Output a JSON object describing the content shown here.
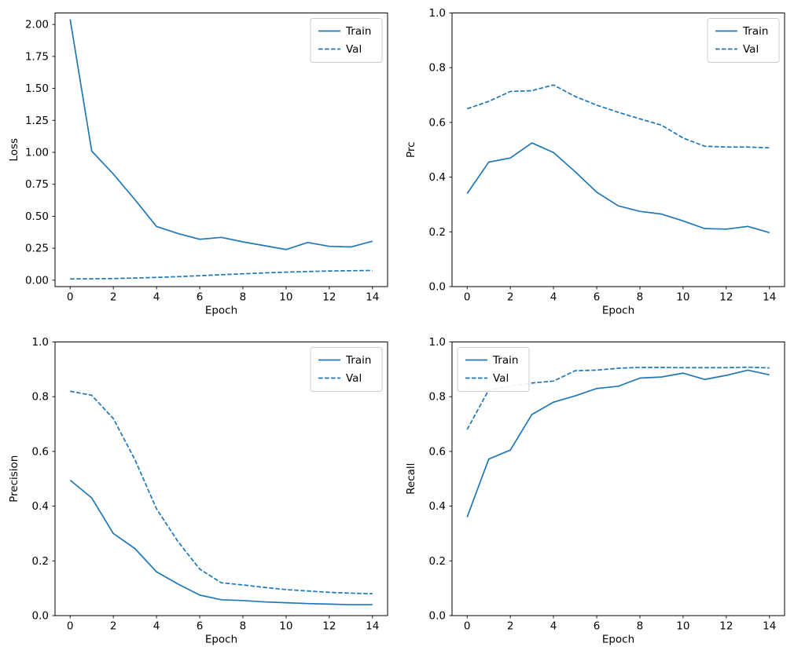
{
  "figure": {
    "background": "#ffffff",
    "line_color": "#1f77b4",
    "spine_color": "#000000",
    "legend_entries": [
      {
        "label": "Train",
        "style": "solid"
      },
      {
        "label": "Val",
        "style": "dashed"
      }
    ]
  },
  "chart_data": [
    {
      "type": "line",
      "name": "loss",
      "title": "",
      "xlabel": "Epoch",
      "ylabel": "Loss",
      "grid": false,
      "legend_position": "upper-right",
      "xlim": [
        -0.7,
        14.7
      ],
      "ylim": [
        -0.05,
        2.09
      ],
      "x": [
        0,
        1,
        2,
        3,
        4,
        5,
        6,
        7,
        8,
        9,
        10,
        11,
        12,
        13,
        14
      ],
      "xticks": [
        0,
        2,
        4,
        6,
        8,
        10,
        12,
        14
      ],
      "xticklabels": [
        "0",
        "2",
        "4",
        "6",
        "8",
        "10",
        "12",
        "14"
      ],
      "yticks": [
        0,
        0.25,
        0.5,
        0.75,
        1.0,
        1.25,
        1.5,
        1.75,
        2.0
      ],
      "yticklabels": [
        "0.00",
        "0.25",
        "0.50",
        "0.75",
        "1.00",
        "1.25",
        "1.50",
        "1.75",
        "2.00"
      ],
      "series": [
        {
          "name": "Train",
          "style": "solid",
          "color": "#1f77b4",
          "values": [
            2.04,
            1.01,
            0.83,
            0.63,
            0.42,
            0.365,
            0.32,
            0.335,
            0.3,
            0.27,
            0.24,
            0.295,
            0.265,
            0.26,
            0.305
          ]
        },
        {
          "name": "Val",
          "style": "dashed",
          "color": "#1f77b4",
          "values": [
            0.01,
            0.011,
            0.013,
            0.017,
            0.022,
            0.028,
            0.035,
            0.043,
            0.05,
            0.057,
            0.063,
            0.068,
            0.072,
            0.074,
            0.076
          ]
        }
      ]
    },
    {
      "type": "line",
      "name": "prc",
      "title": "",
      "xlabel": "Epoch",
      "ylabel": "Prc",
      "grid": false,
      "legend_position": "upper-right",
      "xlim": [
        -0.7,
        14.7
      ],
      "ylim": [
        0,
        1
      ],
      "x": [
        0,
        1,
        2,
        3,
        4,
        5,
        6,
        7,
        8,
        9,
        10,
        11,
        12,
        13,
        14
      ],
      "xticks": [
        0,
        2,
        4,
        6,
        8,
        10,
        12,
        14
      ],
      "xticklabels": [
        "0",
        "2",
        "4",
        "6",
        "8",
        "10",
        "12",
        "14"
      ],
      "yticks": [
        0,
        0.2,
        0.4,
        0.6,
        0.8,
        1.0
      ],
      "yticklabels": [
        "0.0",
        "0.2",
        "0.4",
        "0.6",
        "0.8",
        "1.0"
      ],
      "series": [
        {
          "name": "Train",
          "style": "solid",
          "color": "#1f77b4",
          "values": [
            0.34,
            0.455,
            0.47,
            0.525,
            0.49,
            0.42,
            0.345,
            0.295,
            0.275,
            0.265,
            0.24,
            0.212,
            0.21,
            0.22,
            0.197
          ]
        },
        {
          "name": "Val",
          "style": "dashed",
          "color": "#1f77b4",
          "values": [
            0.65,
            0.677,
            0.713,
            0.716,
            0.737,
            0.695,
            0.663,
            0.637,
            0.613,
            0.59,
            0.543,
            0.513,
            0.51,
            0.51,
            0.507
          ]
        }
      ]
    },
    {
      "type": "line",
      "name": "precision",
      "title": "",
      "xlabel": "Epoch",
      "ylabel": "Precision",
      "grid": false,
      "legend_position": "upper-right",
      "xlim": [
        -0.7,
        14.7
      ],
      "ylim": [
        0,
        1
      ],
      "x": [
        0,
        1,
        2,
        3,
        4,
        5,
        6,
        7,
        8,
        9,
        10,
        11,
        12,
        13,
        14
      ],
      "xticks": [
        0,
        2,
        4,
        6,
        8,
        10,
        12,
        14
      ],
      "xticklabels": [
        "0",
        "2",
        "4",
        "6",
        "8",
        "10",
        "12",
        "14"
      ],
      "yticks": [
        0,
        0.2,
        0.4,
        0.6,
        0.8,
        1.0
      ],
      "yticklabels": [
        "0.0",
        "0.2",
        "0.4",
        "0.6",
        "0.8",
        "1.0"
      ],
      "series": [
        {
          "name": "Train",
          "style": "solid",
          "color": "#1f77b4",
          "values": [
            0.495,
            0.43,
            0.3,
            0.245,
            0.16,
            0.115,
            0.075,
            0.058,
            0.055,
            0.05,
            0.047,
            0.044,
            0.042,
            0.04,
            0.04
          ]
        },
        {
          "name": "Val",
          "style": "dashed",
          "color": "#1f77b4",
          "values": [
            0.82,
            0.805,
            0.72,
            0.57,
            0.39,
            0.27,
            0.17,
            0.12,
            0.112,
            0.103,
            0.095,
            0.09,
            0.085,
            0.082,
            0.08
          ]
        }
      ]
    },
    {
      "type": "line",
      "name": "recall",
      "title": "",
      "xlabel": "Epoch",
      "ylabel": "Recall",
      "grid": false,
      "legend_position": "upper-left",
      "xlim": [
        -0.7,
        14.7
      ],
      "ylim": [
        0,
        1
      ],
      "x": [
        0,
        1,
        2,
        3,
        4,
        5,
        6,
        7,
        8,
        9,
        10,
        11,
        12,
        13,
        14
      ],
      "xticks": [
        0,
        2,
        4,
        6,
        8,
        10,
        12,
        14
      ],
      "xticklabels": [
        "0",
        "2",
        "4",
        "6",
        "8",
        "10",
        "12",
        "14"
      ],
      "yticks": [
        0,
        0.2,
        0.4,
        0.6,
        0.8,
        1.0
      ],
      "yticklabels": [
        "0.0",
        "0.2",
        "0.4",
        "0.6",
        "0.8",
        "1.0"
      ],
      "series": [
        {
          "name": "Train",
          "style": "solid",
          "color": "#1f77b4",
          "values": [
            0.36,
            0.572,
            0.605,
            0.735,
            0.78,
            0.803,
            0.83,
            0.838,
            0.868,
            0.872,
            0.886,
            0.863,
            0.878,
            0.897,
            0.88
          ]
        },
        {
          "name": "Val",
          "style": "dashed",
          "color": "#1f77b4",
          "values": [
            0.68,
            0.825,
            0.838,
            0.85,
            0.857,
            0.895,
            0.897,
            0.904,
            0.907,
            0.907,
            0.906,
            0.906,
            0.906,
            0.908,
            0.905
          ]
        }
      ]
    }
  ]
}
